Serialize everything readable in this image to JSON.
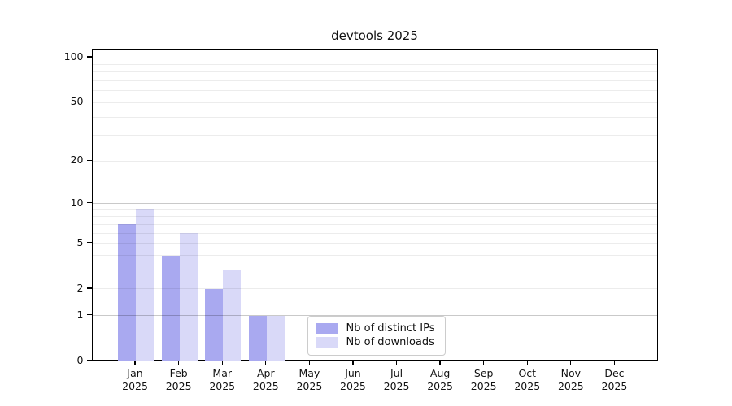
{
  "title": "devtools 2025",
  "year_label": "2025",
  "colors": {
    "distinct_ips": "#a9a9f0",
    "downloads": "#d9d9f8",
    "axis": "#000000",
    "legend_border": "#cccccc",
    "grid_major": "#cccccc",
    "grid_minor": "#ebebeb"
  },
  "chart_data": {
    "type": "bar",
    "title": "devtools 2025",
    "categories": [
      "Jan",
      "Feb",
      "Mar",
      "Apr",
      "May",
      "Jun",
      "Jul",
      "Aug",
      "Sep",
      "Oct",
      "Nov",
      "Dec"
    ],
    "category_year": "2025",
    "series": [
      {
        "name": "Nb of distinct IPs",
        "color": "#a9a9f0",
        "values": [
          7,
          4,
          2,
          1,
          0,
          0,
          0,
          0,
          0,
          0,
          0,
          0
        ]
      },
      {
        "name": "Nb of downloads",
        "color": "#d9d9f8",
        "values": [
          9,
          6,
          3,
          1,
          0,
          0,
          0,
          0,
          0,
          0,
          0,
          0
        ]
      }
    ],
    "xlabel": "",
    "ylabel": "",
    "y_axis": {
      "scale": "log1p",
      "ticks": [
        0,
        1,
        2,
        5,
        10,
        20,
        50,
        100
      ],
      "major_gridlines": [
        1,
        10,
        100
      ],
      "minor_gridlines": [
        2,
        3,
        4,
        5,
        6,
        7,
        8,
        9,
        20,
        30,
        40,
        50,
        60,
        70,
        80,
        90
      ],
      "y_max": 114
    },
    "grid": true,
    "legend_position": "inside-bottom-center"
  }
}
